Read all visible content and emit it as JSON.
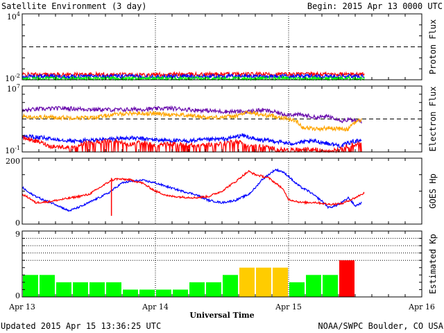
{
  "header": {
    "title": "Satellite Environment (3 day)",
    "begin_label": "Begin:  2015 Apr 13 0000 UTC"
  },
  "footer": {
    "updated": "Updated 2015 Apr 15 13:36:25 UTC",
    "credit": "NOAA/SWPC Boulder, CO USA",
    "x_axis_label": "Universal Time"
  },
  "x_axis": {
    "ticks": [
      "Apr 13",
      "Apr 14",
      "Apr 15",
      "Apr 16"
    ],
    "range_days": [
      0,
      3
    ]
  },
  "colors": {
    "red": "#ff0000",
    "blue": "#0000ff",
    "green": "#00ff00",
    "orange": "#ffa500",
    "purple": "#6a0dad",
    "kp_green": "#00ff00",
    "kp_yellow": "#ffcc00",
    "kp_red": "#ff0000"
  },
  "chart_data": [
    {
      "type": "line",
      "panel": "proton",
      "ylabel": "Proton Flux",
      "yscale": "log",
      "ylim": [
        0.01,
        10000
      ],
      "y_tick_labels": [
        "10^4",
        "10^-2"
      ],
      "threshold": 10,
      "x_end": 2.57,
      "series": [
        {
          "color": "red",
          "values": [
            [
              0,
              0.03
            ],
            [
              0.5,
              0.03
            ],
            [
              1.0,
              0.03
            ],
            [
              1.5,
              0.032
            ],
            [
              2.0,
              0.032
            ],
            [
              2.57,
              0.032
            ]
          ]
        },
        {
          "color": "blue",
          "values": [
            [
              0,
              0.02
            ],
            [
              0.5,
              0.02
            ],
            [
              1.0,
              0.02
            ],
            [
              1.5,
              0.021
            ],
            [
              2.0,
              0.021
            ],
            [
              2.57,
              0.021
            ]
          ]
        },
        {
          "color": "green",
          "values": [
            [
              0,
              0.013
            ],
            [
              0.5,
              0.013
            ],
            [
              1.0,
              0.013
            ],
            [
              1.5,
              0.013
            ],
            [
              2.0,
              0.013
            ],
            [
              2.57,
              0.013
            ]
          ]
        }
      ]
    },
    {
      "type": "line",
      "panel": "electron",
      "ylabel": "Electron Flux",
      "yscale": "log",
      "ylim": [
        0.1,
        10000000
      ],
      "y_tick_labels": [
        "10^7",
        "10^-1"
      ],
      "threshold": 1000,
      "series": [
        {
          "color": "purple",
          "values": [
            [
              0.0,
              10000
            ],
            [
              0.1,
              15000
            ],
            [
              0.3,
              20000
            ],
            [
              0.5,
              15000
            ],
            [
              0.7,
              13000
            ],
            [
              0.9,
              15000
            ],
            [
              1.1,
              20000
            ],
            [
              1.3,
              12000
            ],
            [
              1.5,
              8000
            ],
            [
              1.7,
              8000
            ],
            [
              1.8,
              12000
            ],
            [
              1.95,
              4000
            ],
            [
              2.1,
              3000
            ],
            [
              2.2,
              1500
            ],
            [
              2.3,
              2000
            ],
            [
              2.4,
              600
            ],
            [
              2.45,
              800
            ],
            [
              2.5,
              600
            ],
            [
              2.55,
              500
            ]
          ]
        },
        {
          "color": "orange",
          "values": [
            [
              0.0,
              2000
            ],
            [
              0.1,
              1800
            ],
            [
              0.3,
              1500
            ],
            [
              0.5,
              1400
            ],
            [
              0.6,
              2000
            ],
            [
              0.8,
              5000
            ],
            [
              1.0,
              4500
            ],
            [
              1.2,
              3000
            ],
            [
              1.4,
              1500
            ],
            [
              1.6,
              2000
            ],
            [
              1.7,
              6000
            ],
            [
              1.8,
              3000
            ],
            [
              2.0,
              1000
            ],
            [
              2.1,
              100
            ],
            [
              2.2,
              60
            ],
            [
              2.3,
              80
            ],
            [
              2.45,
              50
            ],
            [
              2.5,
              400
            ],
            [
              2.55,
              800
            ]
          ]
        },
        {
          "color": "blue",
          "values": [
            [
              0.0,
              8
            ],
            [
              0.2,
              4
            ],
            [
              0.4,
              2
            ],
            [
              0.6,
              3
            ],
            [
              0.8,
              5
            ],
            [
              1.0,
              3
            ],
            [
              1.2,
              2
            ],
            [
              1.4,
              3
            ],
            [
              1.55,
              4
            ],
            [
              1.65,
              10
            ],
            [
              1.75,
              3
            ],
            [
              1.9,
              2
            ],
            [
              2.0,
              1
            ],
            [
              2.1,
              1.5
            ],
            [
              2.2,
              2
            ],
            [
              2.3,
              1
            ],
            [
              2.4,
              0.5
            ],
            [
              2.5,
              2
            ],
            [
              2.55,
              3
            ]
          ]
        },
        {
          "color": "red",
          "values": [
            [
              0.0,
              5
            ],
            [
              0.1,
              2
            ],
            [
              0.2,
              0.5
            ],
            [
              0.4,
              0.3
            ],
            [
              0.5,
              1.5
            ],
            [
              0.7,
              2
            ],
            [
              0.8,
              0.8
            ],
            [
              0.9,
              1.5
            ],
            [
              1.0,
              0.5
            ],
            [
              1.1,
              1
            ],
            [
              1.3,
              0.6
            ],
            [
              1.5,
              1
            ],
            [
              1.6,
              2
            ],
            [
              1.7,
              0.6
            ],
            [
              1.8,
              0.5
            ],
            [
              1.9,
              0.2
            ],
            [
              2.0,
              0.2
            ],
            [
              2.2,
              0.2
            ],
            [
              2.3,
              0.15
            ],
            [
              2.4,
              0.3
            ],
            [
              2.5,
              0.8
            ],
            [
              2.55,
              1
            ]
          ]
        }
      ]
    },
    {
      "type": "line",
      "panel": "goes_hp",
      "ylabel": "GOES Hp",
      "ylim": [
        0,
        200
      ],
      "y_tick_labels": [
        "200",
        "0"
      ],
      "series": [
        {
          "color": "blue",
          "values": [
            [
              0.0,
              112
            ],
            [
              0.05,
              95
            ],
            [
              0.15,
              75
            ],
            [
              0.25,
              60
            ],
            [
              0.35,
              40
            ],
            [
              0.45,
              55
            ],
            [
              0.55,
              75
            ],
            [
              0.65,
              95
            ],
            [
              0.75,
              125
            ],
            [
              0.82,
              130
            ],
            [
              0.9,
              133
            ],
            [
              1.0,
              125
            ],
            [
              1.1,
              112
            ],
            [
              1.2,
              100
            ],
            [
              1.3,
              90
            ],
            [
              1.4,
              72
            ],
            [
              1.5,
              65
            ],
            [
              1.6,
              72
            ],
            [
              1.7,
              90
            ],
            [
              1.75,
              110
            ],
            [
              1.8,
              135
            ],
            [
              1.85,
              150
            ],
            [
              1.9,
              165
            ],
            [
              1.95,
              160
            ],
            [
              2.0,
              145
            ],
            [
              2.05,
              125
            ],
            [
              2.1,
              110
            ],
            [
              2.15,
              100
            ],
            [
              2.2,
              85
            ],
            [
              2.25,
              70
            ],
            [
              2.3,
              50
            ],
            [
              2.35,
              55
            ],
            [
              2.4,
              65
            ],
            [
              2.45,
              80
            ],
            [
              2.5,
              55
            ],
            [
              2.55,
              65
            ]
          ]
        },
        {
          "color": "red",
          "values": [
            [
              0.0,
              90
            ],
            [
              0.05,
              80
            ],
            [
              0.1,
              65
            ],
            [
              0.2,
              68
            ],
            [
              0.3,
              75
            ],
            [
              0.4,
              82
            ],
            [
              0.5,
              90
            ],
            [
              0.6,
              115
            ],
            [
              0.65,
              128
            ],
            [
              0.7,
              137
            ],
            [
              0.8,
              135
            ],
            [
              0.9,
              125
            ],
            [
              1.0,
              100
            ],
            [
              1.1,
              85
            ],
            [
              1.2,
              82
            ],
            [
              1.3,
              80
            ],
            [
              1.4,
              84
            ],
            [
              1.5,
              100
            ],
            [
              1.55,
              115
            ],
            [
              1.6,
              128
            ],
            [
              1.65,
              145
            ],
            [
              1.7,
              160
            ],
            [
              1.75,
              150
            ],
            [
              1.8,
              145
            ],
            [
              1.85,
              140
            ],
            [
              1.9,
              125
            ],
            [
              1.95,
              110
            ],
            [
              2.0,
              75
            ],
            [
              2.1,
              65
            ],
            [
              2.2,
              66
            ],
            [
              2.3,
              60
            ],
            [
              2.4,
              62
            ],
            [
              2.5,
              80
            ],
            [
              2.57,
              95
            ]
          ]
        }
      ],
      "spike": {
        "x": 0.67,
        "y_from": 25,
        "y_to": 140
      }
    },
    {
      "type": "bar",
      "panel": "kp",
      "ylabel": "Estimated Kp",
      "ylim": [
        0,
        9
      ],
      "y_tick_labels": [
        "9",
        "0"
      ],
      "bar_width_days": 0.125,
      "values": [
        3,
        3,
        2,
        2,
        2,
        2,
        1,
        1,
        1,
        1,
        2,
        2,
        3,
        4,
        4,
        4,
        2,
        3,
        3,
        5
      ],
      "bar_colors": [
        "green",
        "green",
        "green",
        "green",
        "green",
        "green",
        "green",
        "green",
        "green",
        "green",
        "green",
        "green",
        "green",
        "yellow",
        "yellow",
        "yellow",
        "green",
        "green",
        "green",
        "red"
      ]
    }
  ]
}
